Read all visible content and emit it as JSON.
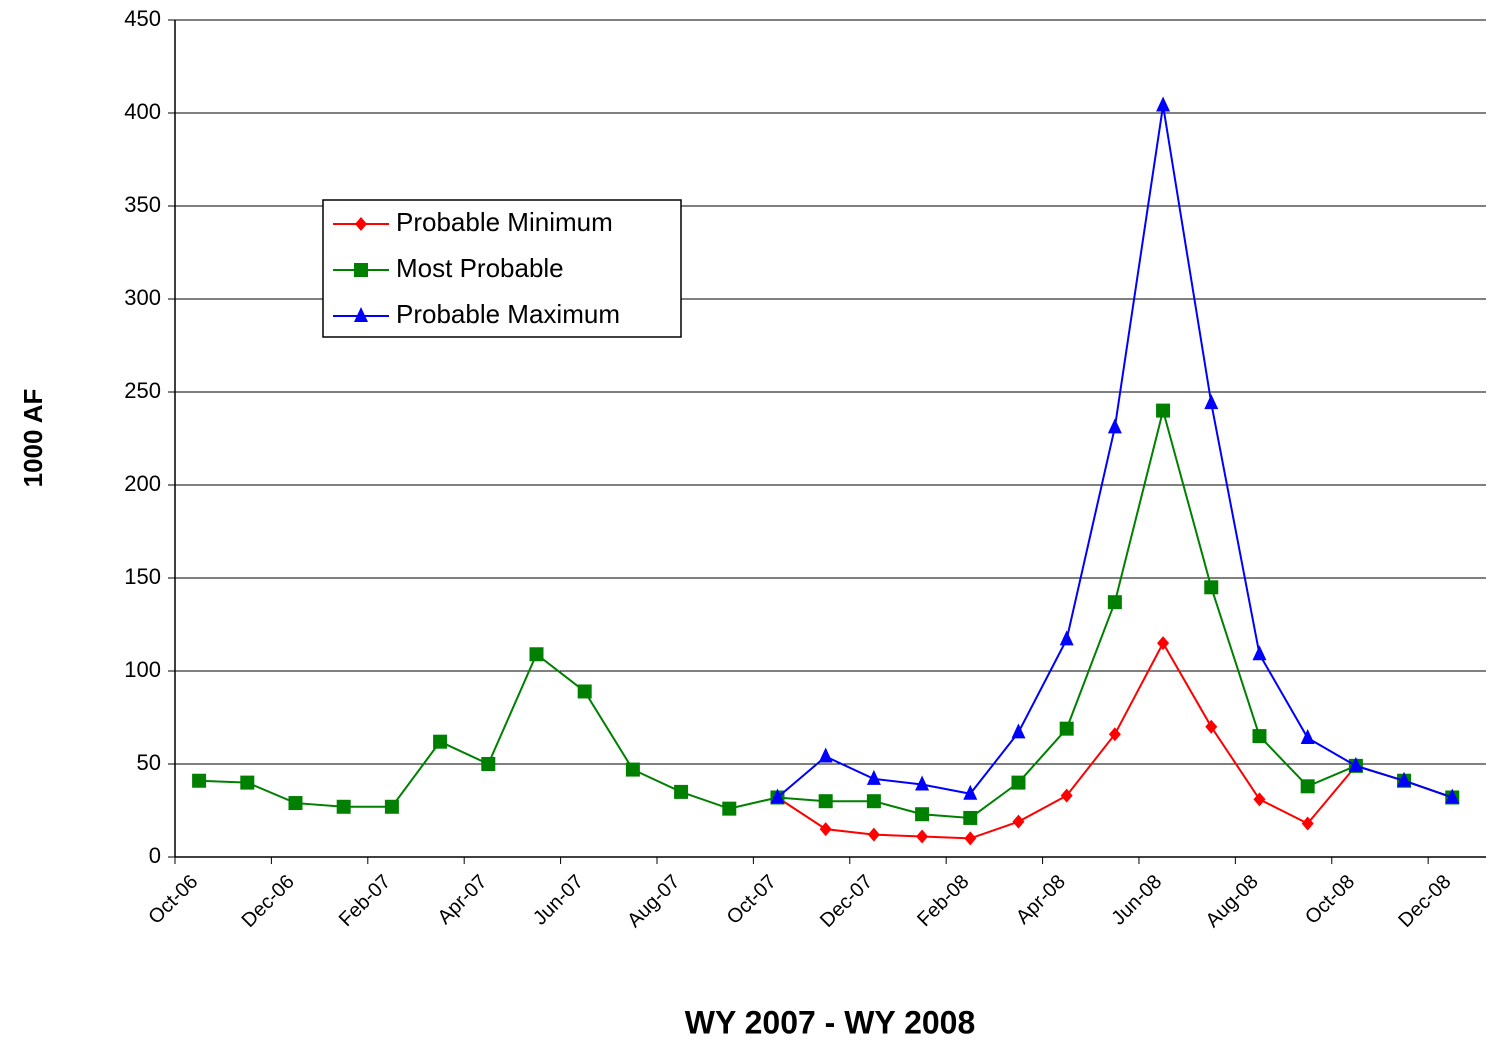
{
  "chart_data": {
    "type": "line",
    "xlabel": "WY 2007 - WY 2008",
    "ylabel": "1000 AF",
    "categories": [
      "Oct-06",
      null,
      "Dec-06",
      null,
      "Feb-07",
      null,
      "Apr-07",
      null,
      "Jun-07",
      null,
      "Aug-07",
      null,
      "Oct-07",
      null,
      "Dec-07",
      null,
      "Feb-08",
      null,
      "Apr-08",
      null,
      "Jun-08",
      null,
      "Aug-08",
      null,
      "Oct-08",
      null,
      "Dec-08"
    ],
    "series": [
      {
        "name": "Probable Minimum",
        "color": "#ff0000",
        "marker": "diamond",
        "values": [
          null,
          null,
          null,
          null,
          null,
          null,
          null,
          null,
          null,
          null,
          null,
          null,
          32,
          15,
          12,
          11,
          10,
          19,
          33,
          66,
          115,
          70,
          31,
          18,
          49,
          41,
          32
        ]
      },
      {
        "name": "Most Probable",
        "color": "#008000",
        "marker": "square",
        "values": [
          41,
          40,
          29,
          27,
          27,
          62,
          50,
          109,
          89,
          47,
          35,
          26,
          32,
          30,
          30,
          23,
          21,
          40,
          69,
          137,
          240,
          145,
          65,
          38,
          49,
          41,
          32
        ]
      },
      {
        "name": "Probable Maximum",
        "color": "#0000ff",
        "marker": "triangle",
        "values": [
          null,
          null,
          null,
          null,
          null,
          null,
          null,
          null,
          null,
          null,
          null,
          null,
          32,
          54,
          42,
          39,
          34,
          67,
          117,
          231,
          404,
          244,
          109,
          64,
          49,
          41,
          32
        ]
      }
    ],
    "ylim": [
      0,
      450
    ],
    "yticks": [
      0,
      50,
      100,
      150,
      200,
      250,
      300,
      350,
      400,
      450
    ],
    "grid": true,
    "legend": "upper-left"
  }
}
